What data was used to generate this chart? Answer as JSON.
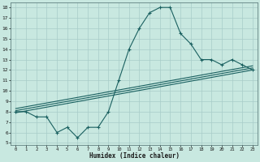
{
  "xlabel": "Humidex (Indice chaleur)",
  "bg_color": "#c8e8e0",
  "grid_color": "#a8ccc8",
  "line_color": "#1a6060",
  "xlim": [
    -0.5,
    23.5
  ],
  "ylim": [
    4.8,
    18.5
  ],
  "xticks": [
    0,
    1,
    2,
    3,
    4,
    5,
    6,
    7,
    8,
    9,
    10,
    11,
    12,
    13,
    14,
    15,
    16,
    17,
    18,
    19,
    20,
    21,
    22,
    23
  ],
  "yticks": [
    5,
    6,
    7,
    8,
    9,
    10,
    11,
    12,
    13,
    14,
    15,
    16,
    17,
    18
  ],
  "zigzag_x": [
    0,
    1,
    2,
    3,
    4,
    5,
    6,
    7,
    8,
    9,
    10,
    11,
    12,
    13,
    14,
    15,
    16,
    17,
    18,
    19,
    20,
    21,
    22,
    23
  ],
  "zigzag_y": [
    8.0,
    8.0,
    7.5,
    7.5,
    6.0,
    6.5,
    5.5,
    6.5,
    6.5,
    8.0,
    11.0,
    14.0,
    16.0,
    17.5,
    18.0,
    18.0,
    15.5,
    14.5,
    13.0,
    13.0,
    12.5,
    13.0,
    12.5,
    12.0
  ],
  "line1_x": [
    0,
    23
  ],
  "line1_y": [
    8.3,
    12.4
  ],
  "line2_x": [
    0,
    23
  ],
  "line2_y": [
    7.9,
    12.0
  ],
  "line3_x": [
    0,
    23
  ],
  "line3_y": [
    8.1,
    12.2
  ]
}
